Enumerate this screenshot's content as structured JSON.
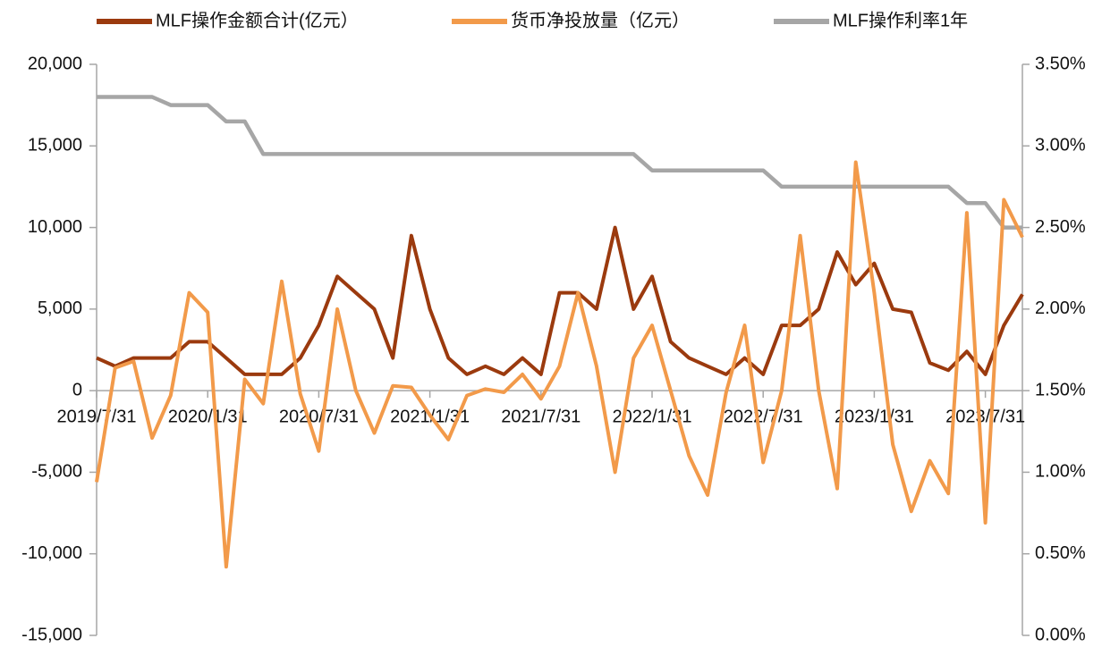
{
  "chart_data": {
    "type": "line",
    "categories": [
      "2019/7/31",
      null,
      null,
      null,
      null,
      null,
      "2020/1/31",
      null,
      null,
      null,
      null,
      null,
      "2020/7/31",
      null,
      null,
      null,
      null,
      null,
      "2021/1/31",
      null,
      null,
      null,
      null,
      null,
      "2021/7/31",
      null,
      null,
      null,
      null,
      null,
      "2022/1/31",
      null,
      null,
      null,
      null,
      null,
      "2022/7/31",
      null,
      null,
      null,
      null,
      null,
      "2023/1/31",
      null,
      null,
      null,
      null,
      null,
      "2023/7/31",
      null,
      null
    ],
    "series": [
      {
        "name": "MLF操作金额合计(亿元）",
        "color": "#9b3a0e",
        "values": [
          2000,
          1500,
          2000,
          2000,
          2000,
          3000,
          3000,
          2000,
          1000,
          1000,
          1000,
          2000,
          4000,
          7000,
          6000,
          5000,
          2000,
          9500,
          5000,
          2000,
          1000,
          1500,
          1000,
          2000,
          1000,
          6000,
          6000,
          5000,
          10000,
          5000,
          7000,
          3000,
          2000,
          1500,
          1000,
          2000,
          1000,
          4000,
          4000,
          5000,
          8500,
          6500,
          7800,
          5000,
          4800,
          1700,
          1250,
          2400,
          1000,
          4000,
          5900
        ]
      },
      {
        "name": "货币净投放量（亿元）",
        "color": "#f29a4a",
        "values": [
          -5600,
          1400,
          1800,
          -2900,
          -300,
          6000,
          4800,
          -10800,
          700,
          -800,
          6700,
          -200,
          -3700,
          5000,
          0,
          -2600,
          300,
          200,
          -1500,
          -3000,
          -300,
          100,
          -100,
          1000,
          -500,
          1500,
          6000,
          1500,
          -5000,
          2000,
          4000,
          0,
          -4000,
          -6400,
          -100,
          4000,
          -4400,
          0,
          9500,
          0,
          -6000,
          14000,
          6000,
          -3300,
          -7400,
          -4300,
          -6300,
          10900,
          -8100,
          11700,
          9400
        ]
      },
      {
        "name": "MLF操作利率1年",
        "color": "#a6a6a6",
        "axis": "y2",
        "values": [
          3.3,
          3.3,
          3.3,
          3.3,
          3.25,
          3.25,
          3.25,
          3.15,
          3.15,
          2.95,
          2.95,
          2.95,
          2.95,
          2.95,
          2.95,
          2.95,
          2.95,
          2.95,
          2.95,
          2.95,
          2.95,
          2.95,
          2.95,
          2.95,
          2.95,
          2.95,
          2.95,
          2.95,
          2.95,
          2.95,
          2.85,
          2.85,
          2.85,
          2.85,
          2.85,
          2.85,
          2.85,
          2.75,
          2.75,
          2.75,
          2.75,
          2.75,
          2.75,
          2.75,
          2.75,
          2.75,
          2.75,
          2.65,
          2.65,
          2.5,
          2.5
        ]
      }
    ],
    "ylim": [
      -15000,
      20000
    ],
    "yticks": [
      {
        "value": -15000,
        "label": "-15,000"
      },
      {
        "value": -10000,
        "label": "-10,000"
      },
      {
        "value": -5000,
        "label": "-5,000"
      },
      0,
      {
        "value": 5000,
        "label": "5,000"
      },
      {
        "value": 10000,
        "label": "10,000"
      },
      {
        "value": 15000,
        "label": "15,000"
      },
      {
        "value": 20000,
        "label": "20,000"
      }
    ],
    "y2lim": [
      0,
      3.5
    ],
    "y2ticks": [
      {
        "value": 0,
        "label": "0.00%"
      },
      {
        "value": 0.5,
        "label": "0.50%"
      },
      {
        "value": 1,
        "label": "1.00%"
      },
      {
        "value": 1.5,
        "label": "1.50%"
      },
      {
        "value": 2,
        "label": "2.00%"
      },
      {
        "value": 2.5,
        "label": "2.50%"
      },
      {
        "value": 3,
        "label": "3.00%"
      },
      {
        "value": 3.5,
        "label": "3.50%"
      }
    ],
    "legend": "top",
    "grid": false
  }
}
